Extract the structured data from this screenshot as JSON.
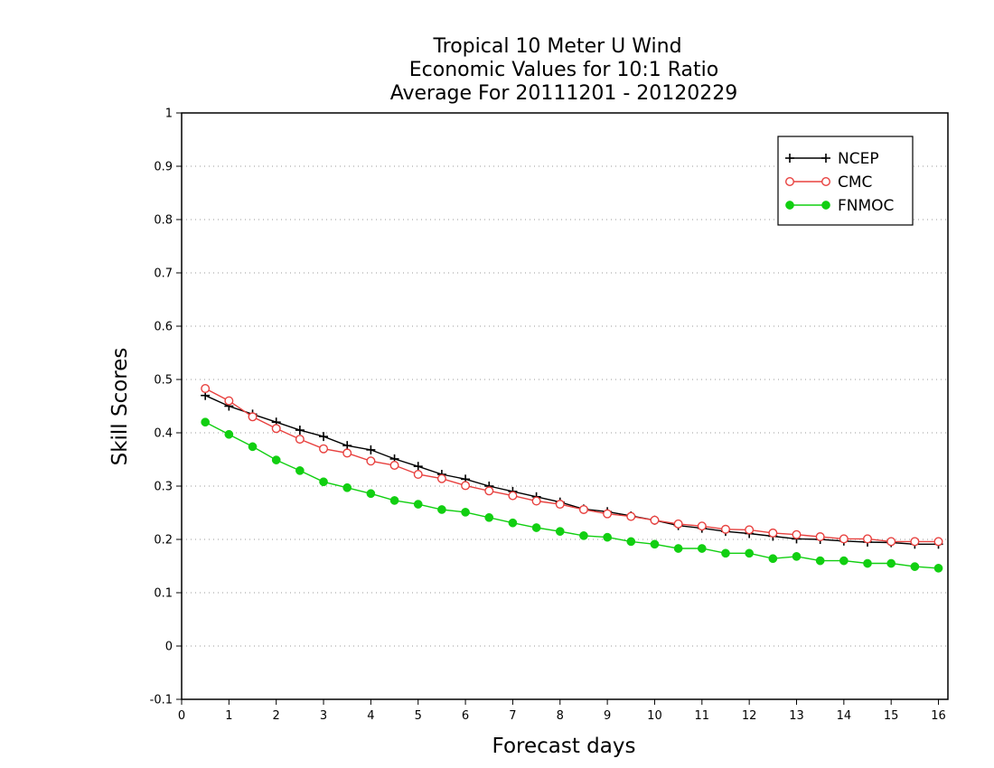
{
  "chart_data": {
    "type": "line",
    "title_lines": [
      "Tropical 10 Meter U Wind",
      "Economic Values for 10:1 Ratio",
      "Average For 20111201 - 20120229"
    ],
    "xlabel": "Forecast days",
    "ylabel": "Skill Scores",
    "xlim": [
      0,
      16.2
    ],
    "ylim": [
      -0.1,
      1
    ],
    "x_ticks": [
      0,
      1,
      2,
      3,
      4,
      5,
      6,
      7,
      8,
      9,
      10,
      11,
      12,
      13,
      14,
      15,
      16
    ],
    "x_tick_labels": [
      "0",
      "1",
      "2",
      "3",
      "4",
      "5",
      "6",
      "7",
      "8",
      "9",
      "10",
      "11",
      "12",
      "13",
      "14",
      "15",
      "16"
    ],
    "y_ticks": [
      -0.1,
      0,
      0.1,
      0.2,
      0.3,
      0.4,
      0.5,
      0.6,
      0.7,
      0.8,
      0.9,
      1
    ],
    "y_tick_labels": [
      "-0.1",
      "0",
      "0.1",
      "0.2",
      "0.3",
      "0.4",
      "0.5",
      "0.6",
      "0.7",
      "0.8",
      "0.9",
      "1"
    ],
    "grid": "horizontal dotted",
    "legend_position": "top-right",
    "x": [
      0.5,
      1,
      1.5,
      2,
      2.5,
      3,
      3.5,
      4,
      4.5,
      5,
      5.5,
      6,
      6.5,
      7,
      7.5,
      8,
      8.5,
      9,
      9.5,
      10,
      10.5,
      11,
      11.5,
      12,
      12.5,
      13,
      13.5,
      14,
      14.5,
      15,
      15.5,
      16
    ],
    "series": [
      {
        "name": "NCEP",
        "color": "#000000",
        "marker": "plus",
        "values": [
          0.47,
          0.45,
          0.435,
          0.42,
          0.405,
          0.393,
          0.376,
          0.368,
          0.351,
          0.337,
          0.322,
          0.313,
          0.3,
          0.29,
          0.28,
          0.27,
          0.257,
          0.252,
          0.244,
          0.236,
          0.226,
          0.221,
          0.215,
          0.211,
          0.206,
          0.201,
          0.2,
          0.197,
          0.195,
          0.194,
          0.191,
          0.191
        ]
      },
      {
        "name": "CMC",
        "color": "#e8413f",
        "marker": "open-circle",
        "values": [
          0.483,
          0.46,
          0.43,
          0.408,
          0.388,
          0.37,
          0.362,
          0.347,
          0.339,
          0.322,
          0.314,
          0.301,
          0.291,
          0.282,
          0.272,
          0.266,
          0.256,
          0.248,
          0.243,
          0.236,
          0.229,
          0.225,
          0.219,
          0.218,
          0.212,
          0.209,
          0.205,
          0.201,
          0.201,
          0.196,
          0.196,
          0.196
        ]
      },
      {
        "name": "FNMOC",
        "color": "#11cf11",
        "marker": "filled-circle",
        "values": [
          0.42,
          0.397,
          0.374,
          0.349,
          0.329,
          0.308,
          0.297,
          0.286,
          0.273,
          0.266,
          0.256,
          0.251,
          0.241,
          0.231,
          0.222,
          0.215,
          0.207,
          0.204,
          0.196,
          0.191,
          0.183,
          0.183,
          0.174,
          0.174,
          0.164,
          0.168,
          0.16,
          0.16,
          0.155,
          0.155,
          0.149,
          0.146
        ]
      }
    ]
  }
}
